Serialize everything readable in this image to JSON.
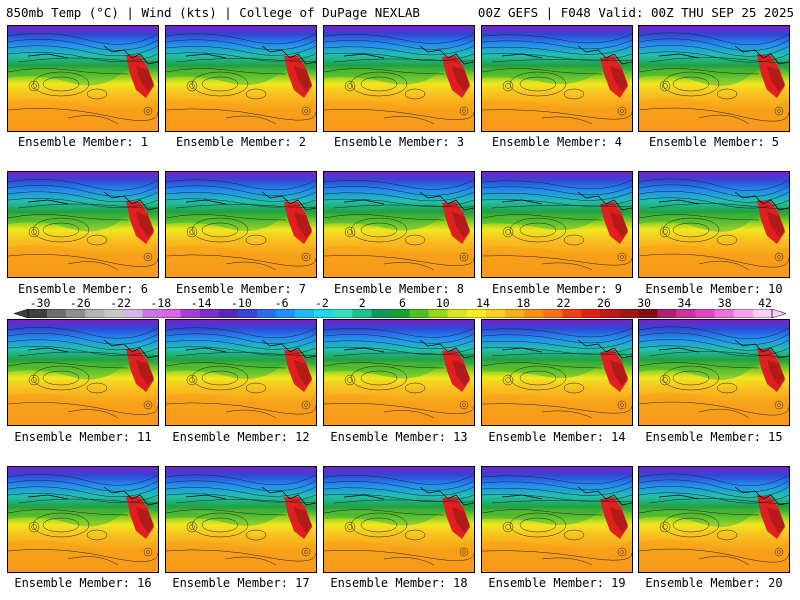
{
  "header": {
    "left_title": "850mb Temp (°C) | Wind (kts) | College of DuPage NEXLAB",
    "right_title": "00Z GEFS | F048 Valid: 00Z THU SEP 25 2025"
  },
  "colorbar": {
    "labels": [
      "-30",
      "-26",
      "-22",
      "-18",
      "-14",
      "-10",
      "-6",
      "-2",
      "2",
      "6",
      "10",
      "14",
      "18",
      "22",
      "26",
      "30",
      "34",
      "38",
      "42"
    ],
    "colors": [
      "#404040",
      "#6e6e6e",
      "#8e8e8e",
      "#b4b4b4",
      "#c8c8c8",
      "#d8b4e8",
      "#c878e0",
      "#e060e8",
      "#a040d0",
      "#7a30c8",
      "#5828b8",
      "#3a40d8",
      "#2c6cf0",
      "#2090f8",
      "#20b8f8",
      "#20d8e8",
      "#30e0c0",
      "#20c090",
      "#109858",
      "#18a030",
      "#50c020",
      "#98d818",
      "#d8e820",
      "#f8f020",
      "#f8d020",
      "#f8b018",
      "#f89018",
      "#f87018",
      "#f04018",
      "#e02018",
      "#c01818",
      "#a01818",
      "#801018",
      "#b02070",
      "#d030a0",
      "#e048c0",
      "#f070d8",
      "#f8a0e8",
      "#fcd0f4"
    ]
  },
  "members": [
    {
      "caption": "Ensemble Member: 1"
    },
    {
      "caption": "Ensemble Member: 2"
    },
    {
      "caption": "Ensemble Member: 3"
    },
    {
      "caption": "Ensemble Member: 4"
    },
    {
      "caption": "Ensemble Member: 5"
    },
    {
      "caption": "Ensemble Member: 6"
    },
    {
      "caption": "Ensemble Member: 7"
    },
    {
      "caption": "Ensemble Member: 8"
    },
    {
      "caption": "Ensemble Member: 9"
    },
    {
      "caption": "Ensemble Member: 10"
    },
    {
      "caption": "Ensemble Member: 11"
    },
    {
      "caption": "Ensemble Member: 12"
    },
    {
      "caption": "Ensemble Member: 13"
    },
    {
      "caption": "Ensemble Member: 14"
    },
    {
      "caption": "Ensemble Member: 15"
    },
    {
      "caption": "Ensemble Member: 16"
    },
    {
      "caption": "Ensemble Member: 17"
    },
    {
      "caption": "Ensemble Member: 18"
    },
    {
      "caption": "Ensemble Member: 19"
    },
    {
      "caption": "Ensemble Member: 20"
    }
  ]
}
